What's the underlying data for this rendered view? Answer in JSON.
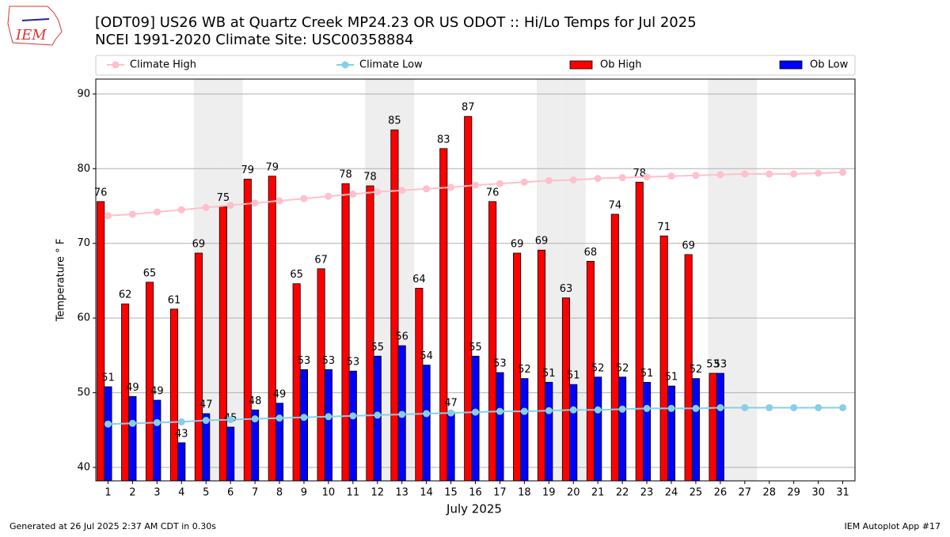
{
  "chart_data": {
    "type": "bar",
    "logo_text": "IEM",
    "title": "[ODT09] US26 WB at Quartz Creek MP24.23  OR US ODOT :: Hi/Lo Temps for Jul 2025",
    "subtitle": "NCEI 1991-2020 Climate Site: USC00358884",
    "xlabel": "July 2025",
    "ylabel": "Temperature ° F",
    "x": [
      1,
      2,
      3,
      4,
      5,
      6,
      7,
      8,
      9,
      10,
      11,
      12,
      13,
      14,
      15,
      16,
      17,
      18,
      19,
      20,
      21,
      22,
      23,
      24,
      25,
      26,
      27,
      28,
      29,
      30,
      31
    ],
    "xlim": [
      0.5,
      31.5
    ],
    "xticks": [
      1,
      2,
      3,
      4,
      5,
      6,
      7,
      8,
      9,
      10,
      11,
      12,
      13,
      14,
      15,
      16,
      17,
      18,
      19,
      20,
      21,
      22,
      23,
      24,
      25,
      26,
      27,
      28,
      29,
      30,
      31
    ],
    "ylim": [
      38.2,
      92
    ],
    "yticks": [
      40,
      50,
      60,
      70,
      80,
      90
    ],
    "grid": "y",
    "shaded_days": [
      5,
      6,
      12,
      13,
      19,
      20,
      26,
      27
    ],
    "shade_color": "#eeeeee",
    "series": [
      {
        "name": "Climate High",
        "kind": "line",
        "color": "#ffc0cb",
        "values": [
          73.7,
          73.9,
          74.2,
          74.5,
          74.8,
          75.1,
          75.4,
          75.7,
          76.0,
          76.3,
          76.6,
          76.9,
          77.1,
          77.3,
          77.5,
          77.8,
          78.0,
          78.2,
          78.4,
          78.5,
          78.7,
          78.8,
          78.9,
          79.0,
          79.1,
          79.2,
          79.3,
          79.3,
          79.3,
          79.4,
          79.5
        ]
      },
      {
        "name": "Climate Low",
        "kind": "line",
        "color": "#87ceeb",
        "values": [
          45.8,
          45.9,
          46.0,
          46.1,
          46.3,
          46.4,
          46.5,
          46.6,
          46.7,
          46.8,
          46.9,
          47.0,
          47.1,
          47.2,
          47.3,
          47.4,
          47.5,
          47.5,
          47.6,
          47.7,
          47.7,
          47.8,
          47.9,
          47.9,
          47.9,
          48.0,
          48.0,
          48.0,
          48.0,
          48.0,
          48.0
        ]
      },
      {
        "name": "Ob High",
        "kind": "bar",
        "color": "#ff0000",
        "values": [
          75.6,
          61.9,
          64.8,
          61.2,
          68.7,
          74.9,
          78.6,
          79.0,
          64.6,
          66.6,
          78.0,
          77.7,
          85.2,
          64.0,
          82.7,
          87.0,
          75.6,
          68.7,
          69.1,
          62.7,
          67.6,
          73.9,
          78.2,
          71.0,
          68.5,
          52.6,
          null,
          null,
          null,
          null,
          null
        ],
        "value_labels": [
          "76",
          "62",
          "65",
          "61",
          "69",
          "75",
          "79",
          "79",
          "65",
          "67",
          "78",
          "78",
          "85",
          "64",
          "83",
          "87",
          "76",
          "69",
          "69",
          "63",
          "68",
          "74",
          "78",
          "71",
          "69",
          "53",
          null,
          null,
          null,
          null,
          null
        ]
      },
      {
        "name": "Ob Low",
        "kind": "bar",
        "color": "#0000ff",
        "values": [
          50.8,
          49.5,
          49.0,
          43.3,
          47.2,
          45.4,
          47.7,
          48.6,
          53.1,
          53.1,
          52.9,
          54.9,
          56.3,
          53.7,
          47.4,
          54.9,
          52.7,
          51.9,
          51.4,
          51.1,
          52.1,
          52.1,
          51.4,
          50.9,
          51.9,
          52.6,
          null,
          null,
          null,
          null,
          null
        ],
        "value_labels": [
          "51",
          "49",
          "49",
          "43",
          "47",
          "45",
          "48",
          "49",
          "53",
          "53",
          "53",
          "55",
          "56",
          "54",
          "47",
          "55",
          "53",
          "52",
          "51",
          "51",
          "52",
          "52",
          "51",
          "51",
          "52",
          "53",
          null,
          null,
          null,
          null,
          null
        ]
      }
    ],
    "footer_left": "Generated at 26 Jul 2025 2:37 AM CDT in 0.30s",
    "footer_right": "IEM Autoplot App #17"
  }
}
